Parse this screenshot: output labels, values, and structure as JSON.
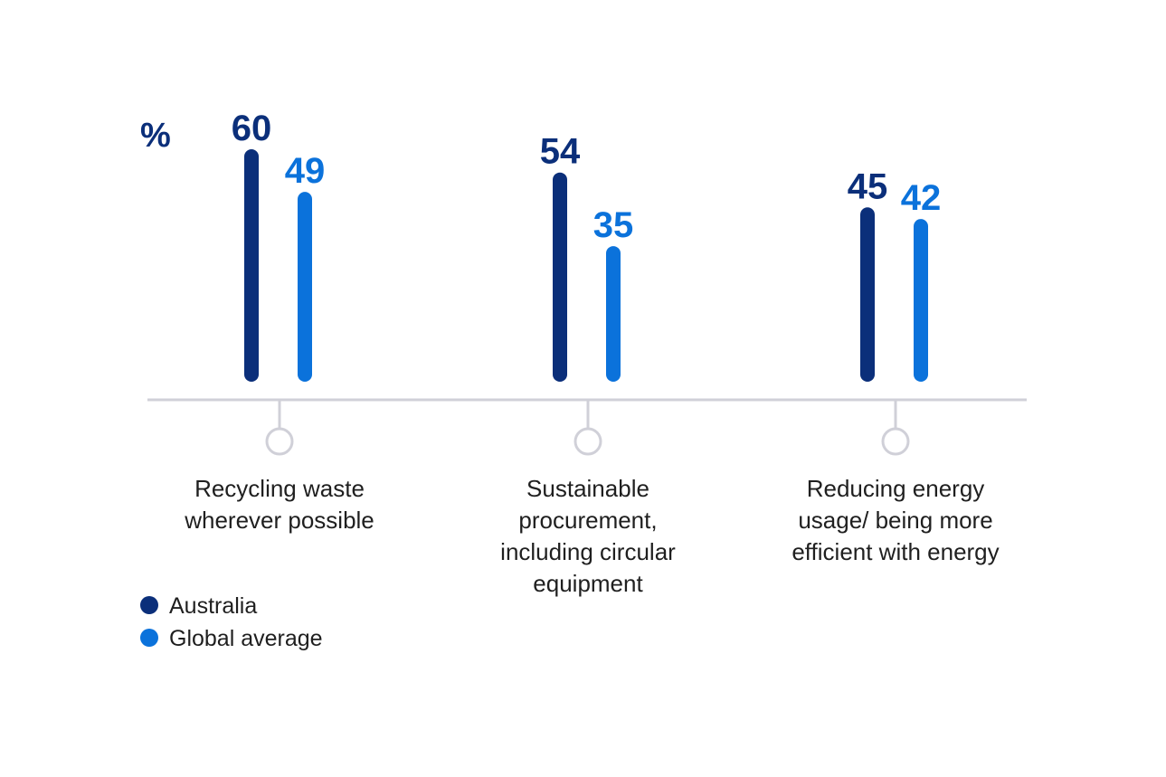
{
  "chart_data": {
    "type": "bar",
    "unit_label": "%",
    "categories": [
      [
        "Recycling waste",
        "wherever possible"
      ],
      [
        "Sustainable",
        "procurement,",
        "including circular",
        "equipment"
      ],
      [
        "Reducing energy",
        "usage/ being more",
        "efficient with energy"
      ]
    ],
    "series": [
      {
        "name": "Australia",
        "color": "#0b2f7a",
        "values": [
          60,
          54,
          45
        ]
      },
      {
        "name": "Global average",
        "color": "#0b72db",
        "values": [
          49,
          35,
          42
        ]
      }
    ],
    "ylim": [
      0,
      60
    ],
    "grid": false,
    "legend_position": "bottom-left",
    "axis_color": "#d0d0d8"
  }
}
